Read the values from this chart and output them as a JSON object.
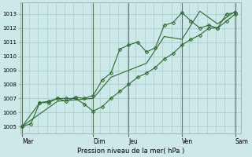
{
  "bg_color": "#cce8e8",
  "grid_color": "#aacccc",
  "line_color": "#2d6a2d",
  "marker_color": "#2d6a2d",
  "xlabel": "Pression niveau de la mer( hPa )",
  "ylim": [
    1004.5,
    1013.8
  ],
  "yticks": [
    1005,
    1006,
    1007,
    1008,
    1009,
    1010,
    1011,
    1012,
    1013
  ],
  "day_labels": [
    "Mar",
    "Dim",
    "Jeu",
    "Ven",
    "Sam"
  ],
  "day_positions": [
    0,
    4,
    6,
    9,
    12
  ],
  "vline_positions": [
    0,
    4,
    6,
    9,
    12
  ],
  "xlim": [
    -0.1,
    12.3
  ],
  "series1_x": [
    0,
    0.5,
    1,
    1.5,
    2,
    2.5,
    3,
    3.5,
    4,
    4.5,
    5,
    5.5,
    6,
    6.5,
    7,
    7.5,
    8,
    8.5,
    9,
    9.5,
    10,
    10.5,
    11,
    11.5,
    12
  ],
  "series1_y": [
    1005.0,
    1005.2,
    1006.7,
    1006.8,
    1007.0,
    1006.8,
    1007.1,
    1007.0,
    1007.2,
    1008.3,
    1008.8,
    1010.5,
    1010.8,
    1011.0,
    1010.3,
    1010.6,
    1012.2,
    1012.4,
    1013.1,
    1012.5,
    1012.0,
    1012.2,
    1012.0,
    1013.0,
    1013.1
  ],
  "series2_x": [
    0,
    1,
    1.5,
    2,
    2.5,
    3,
    3.5,
    4,
    4.5,
    5,
    5.5,
    6,
    6.5,
    7,
    7.5,
    8,
    8.5,
    9,
    9.5,
    10,
    10.5,
    11,
    11.5,
    12
  ],
  "series2_y": [
    1005.0,
    1006.7,
    1006.7,
    1007.0,
    1007.0,
    1007.0,
    1006.6,
    1006.1,
    1006.4,
    1007.0,
    1007.5,
    1008.0,
    1008.5,
    1008.8,
    1009.2,
    1009.8,
    1010.2,
    1010.8,
    1011.2,
    1011.5,
    1012.0,
    1012.0,
    1012.5,
    1013.0
  ],
  "series3_x": [
    0,
    2,
    4,
    5,
    6,
    7,
    8,
    9,
    10,
    11,
    12
  ],
  "series3_y": [
    1005.0,
    1006.8,
    1007.0,
    1008.5,
    1009.0,
    1009.5,
    1011.4,
    1011.2,
    1013.2,
    1012.3,
    1013.2
  ]
}
